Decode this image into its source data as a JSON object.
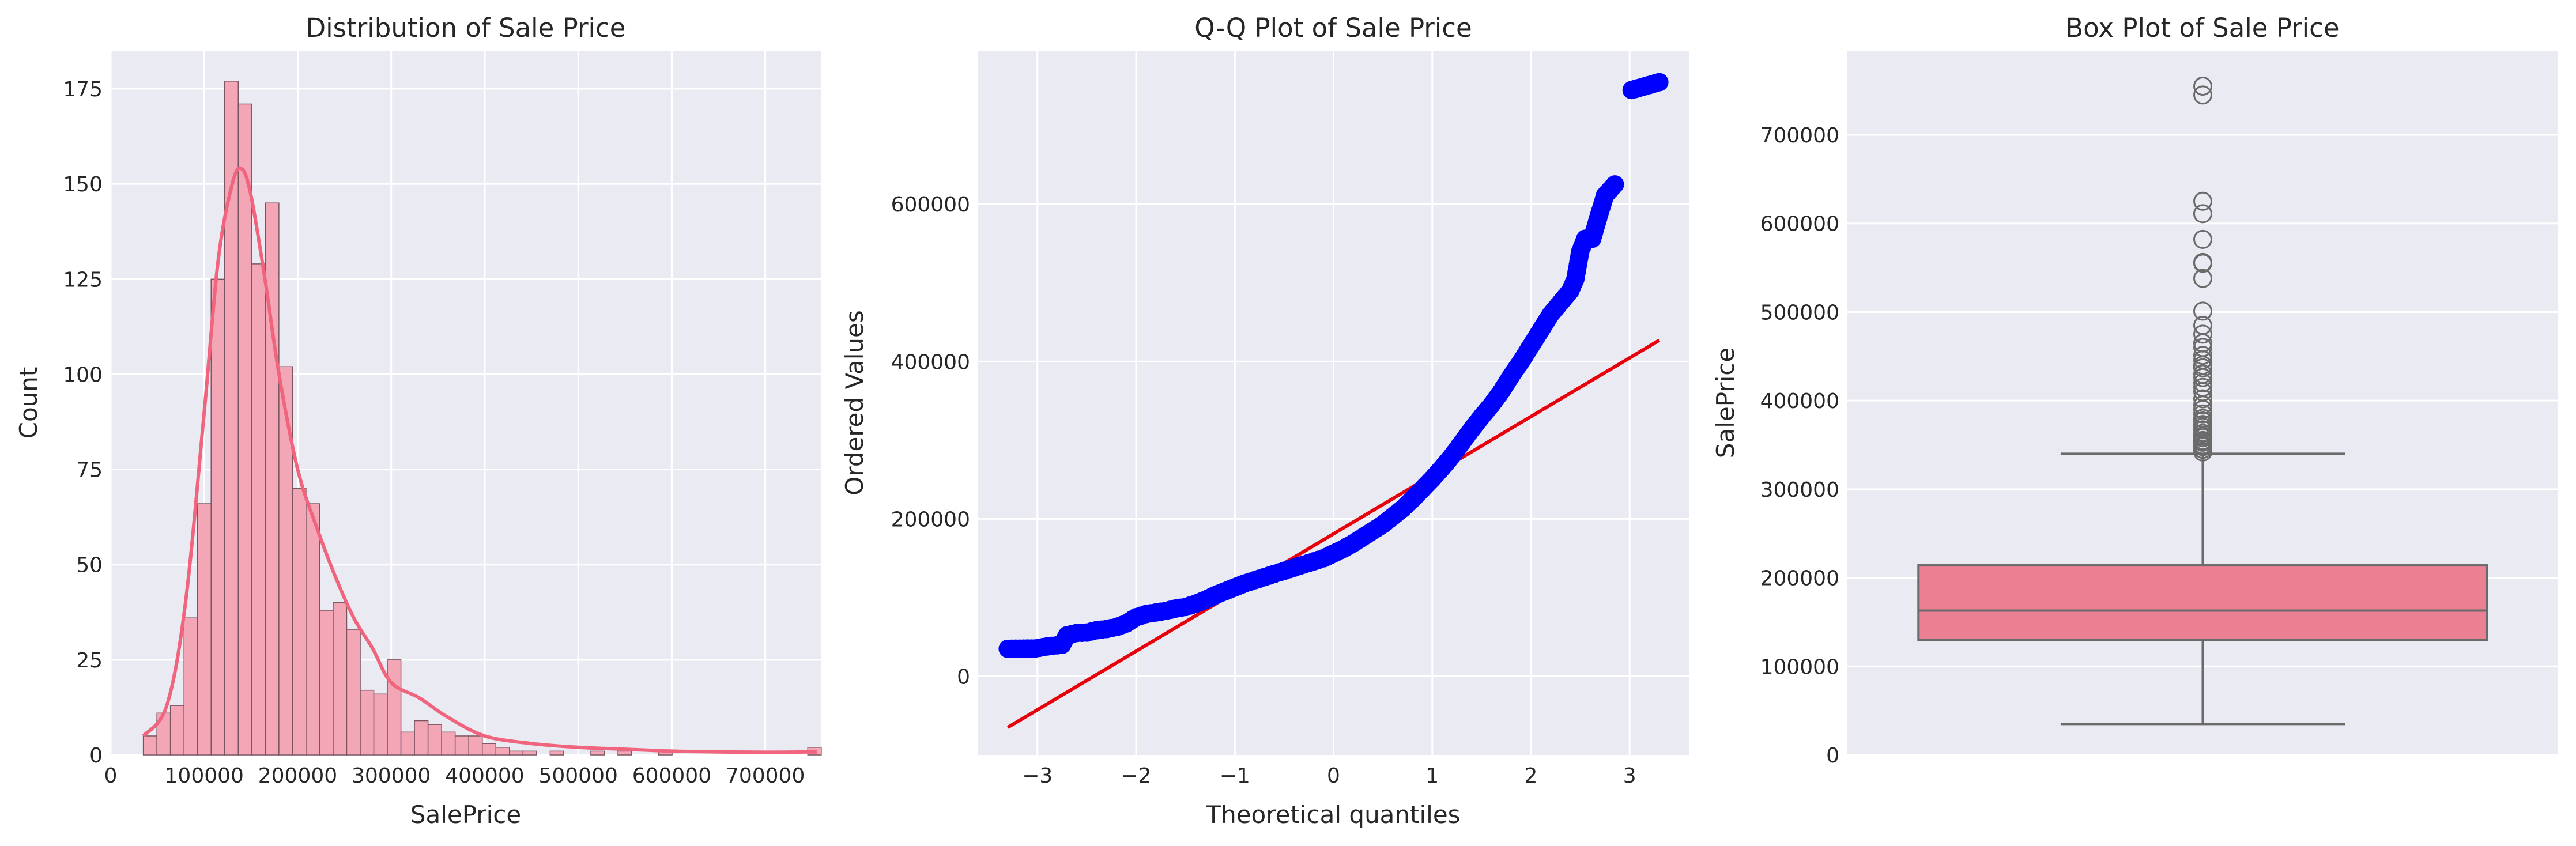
{
  "chart_data": [
    {
      "type": "bar",
      "subtype": "histogram_with_kde",
      "title": "Distribution of Sale Price",
      "xlabel": "SalePrice",
      "ylabel": "Count",
      "xlim": [
        0,
        760000
      ],
      "ylim": [
        0,
        185
      ],
      "xticks": [
        0,
        100000,
        200000,
        300000,
        400000,
        500000,
        600000,
        700000
      ],
      "xtick_labels": [
        "0",
        "100000",
        "200000",
        "300000",
        "400000",
        "500000",
        "600000",
        "700000"
      ],
      "yticks": [
        0,
        25,
        50,
        75,
        100,
        125,
        150,
        175
      ],
      "ytick_labels": [
        "0",
        "25",
        "50",
        "75",
        "100",
        "125",
        "150",
        "175"
      ],
      "grid": true,
      "bar_color": "#f3a6b6",
      "bar_edge_color": "#7a5560",
      "kde_color": "#f0647e",
      "bin_start": 34900,
      "bin_width": 14500,
      "counts": [
        5,
        11,
        13,
        36,
        66,
        125,
        177,
        171,
        129,
        145,
        102,
        70,
        66,
        38,
        40,
        33,
        17,
        16,
        25,
        6,
        9,
        8,
        6,
        5,
        5,
        3,
        2,
        1,
        1,
        0,
        1,
        0,
        0,
        1,
        0,
        1,
        0,
        0,
        1,
        0,
        0,
        0,
        0,
        0,
        0,
        0,
        0,
        0,
        0,
        2
      ],
      "kde": {
        "x": [
          34900,
          60000,
          80000,
          100000,
          115000,
          130000,
          140000,
          150000,
          165000,
          180000,
          200000,
          220000,
          240000,
          260000,
          280000,
          300000,
          330000,
          360000,
          400000,
          450000,
          500000,
          550000,
          600000,
          650000,
          700000,
          755000
        ],
        "y": [
          5,
          13,
          40,
          90,
          130,
          150,
          154,
          147,
          125,
          100,
          75,
          60,
          47,
          36,
          28,
          19,
          15,
          10,
          5,
          3,
          2,
          1.5,
          1,
          0.8,
          0.7,
          0.8
        ]
      }
    },
    {
      "type": "scatter",
      "subtype": "qq_plot",
      "title": "Q-Q Plot of Sale Price",
      "xlabel": "Theoretical quantiles",
      "ylabel": "Ordered Values",
      "xlim": [
        -3.6,
        3.6
      ],
      "ylim": [
        -100000,
        795000
      ],
      "xticks": [
        -3,
        -2,
        -1,
        0,
        1,
        2,
        3
      ],
      "xtick_labels": [
        "−3",
        "−2",
        "−1",
        "0",
        "1",
        "2",
        "3"
      ],
      "yticks": [
        0,
        200000,
        400000,
        600000
      ],
      "ytick_labels": [
        "0",
        "200000",
        "400000",
        "600000"
      ],
      "grid": true,
      "point_color": "#0000ff",
      "line_color": "#e8000b",
      "fit_line": {
        "x": [
          -3.3,
          3.3
        ],
        "y": [
          -65000,
          427000
        ]
      },
      "points": [
        [
          -3.3,
          34900
        ],
        [
          -3.02,
          35300
        ],
        [
          -2.9,
          37900
        ],
        [
          -2.8,
          39300
        ],
        [
          -2.75,
          40000
        ],
        [
          -2.7,
          52000
        ],
        [
          -2.6,
          55000
        ],
        [
          -2.5,
          55500
        ],
        [
          -2.4,
          58500
        ],
        [
          -2.3,
          60000
        ],
        [
          -2.2,
          62500
        ],
        [
          -2.1,
          67000
        ],
        [
          -2.0,
          75000
        ],
        [
          -1.9,
          79000
        ],
        [
          -1.8,
          81000
        ],
        [
          -1.7,
          83000
        ],
        [
          -1.6,
          86000
        ],
        [
          -1.5,
          88000
        ],
        [
          -1.4,
          92000
        ],
        [
          -1.3,
          97000
        ],
        [
          -1.2,
          103000
        ],
        [
          -1.1,
          108000
        ],
        [
          -1.0,
          113000
        ],
        [
          -0.9,
          118000
        ],
        [
          -0.8,
          122000
        ],
        [
          -0.7,
          126000
        ],
        [
          -0.6,
          130000
        ],
        [
          -0.5,
          134000
        ],
        [
          -0.4,
          138000
        ],
        [
          -0.3,
          142000
        ],
        [
          -0.2,
          146000
        ],
        [
          -0.1,
          150000
        ],
        [
          0.0,
          156000
        ],
        [
          0.1,
          162000
        ],
        [
          0.2,
          169000
        ],
        [
          0.3,
          177000
        ],
        [
          0.4,
          185000
        ],
        [
          0.5,
          193000
        ],
        [
          0.6,
          203000
        ],
        [
          0.7,
          213000
        ],
        [
          0.8,
          225000
        ],
        [
          0.9,
          238000
        ],
        [
          1.0,
          251000
        ],
        [
          1.1,
          265000
        ],
        [
          1.2,
          280000
        ],
        [
          1.3,
          297000
        ],
        [
          1.4,
          314000
        ],
        [
          1.5,
          330000
        ],
        [
          1.6,
          345000
        ],
        [
          1.7,
          362000
        ],
        [
          1.8,
          382000
        ],
        [
          1.9,
          400000
        ],
        [
          2.0,
          420000
        ],
        [
          2.1,
          440000
        ],
        [
          2.2,
          460000
        ],
        [
          2.3,
          475000
        ],
        [
          2.4,
          490000
        ],
        [
          2.45,
          505000
        ],
        [
          2.5,
          540000
        ],
        [
          2.55,
          556000
        ],
        [
          2.62,
          556000
        ],
        [
          2.68,
          582000
        ],
        [
          2.75,
          611000
        ],
        [
          2.85,
          625000
        ],
        [
          3.02,
          745000
        ],
        [
          3.3,
          755000
        ]
      ]
    },
    {
      "type": "box",
      "title": "Box Plot of Sale Price",
      "xlabel": "",
      "ylabel": "SalePrice",
      "ylim": [
        0,
        795000
      ],
      "yticks": [
        0,
        100000,
        200000,
        300000,
        400000,
        500000,
        600000,
        700000
      ],
      "ytick_labels": [
        "0",
        "100000",
        "200000",
        "300000",
        "400000",
        "500000",
        "600000",
        "700000"
      ],
      "grid": true,
      "box_color": "#eb8092",
      "line_color": "#6a6a6a",
      "whisker_low": 34900,
      "q1": 130000,
      "median": 163000,
      "q3": 214000,
      "whisker_high": 340000,
      "outliers": [
        342000,
        345000,
        348000,
        350000,
        353000,
        355000,
        358000,
        360000,
        363000,
        367000,
        370000,
        373000,
        377000,
        380000,
        385000,
        390000,
        395000,
        402000,
        410000,
        415000,
        420000,
        426000,
        430000,
        437000,
        440000,
        446000,
        451000,
        460000,
        465000,
        475000,
        485000,
        501000,
        538000,
        555000,
        556000,
        582000,
        611000,
        625000,
        745000,
        755000
      ]
    }
  ]
}
